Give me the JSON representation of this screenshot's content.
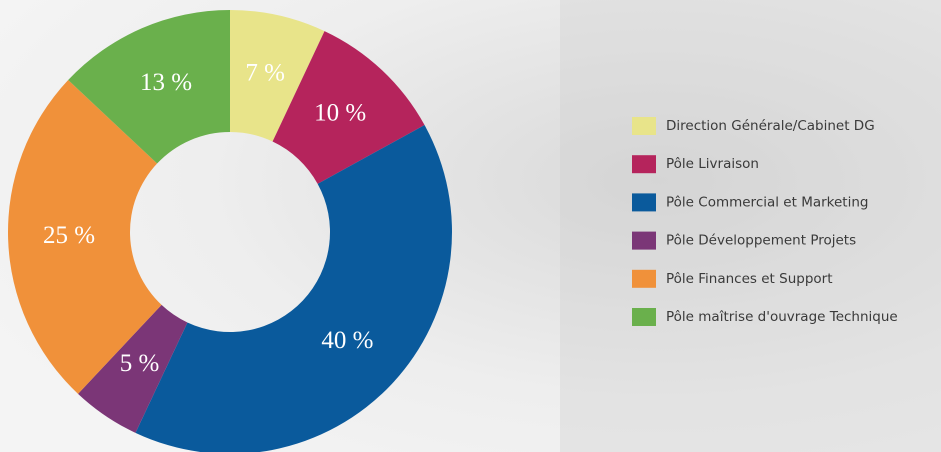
{
  "chart_data": {
    "type": "pie",
    "categories": [
      "Direction Générale/Cabinet DG",
      "Pôle Livraison",
      "Pôle Commercial et Marketing",
      "Pôle Développement Projets",
      "Pôle Finances et Support",
      "Pôle maîtrise d'ouvrage Technique"
    ],
    "values": [
      7,
      10,
      40,
      5,
      25,
      13
    ],
    "value_labels": [
      "7 %",
      "10 %",
      "40 %",
      "5 %",
      "25 %",
      "13 %"
    ],
    "colors": [
      "#e8e48a",
      "#b5245c",
      "#0a5a9c",
      "#7b3677",
      "#f0913a",
      "#6ab04c"
    ]
  }
}
